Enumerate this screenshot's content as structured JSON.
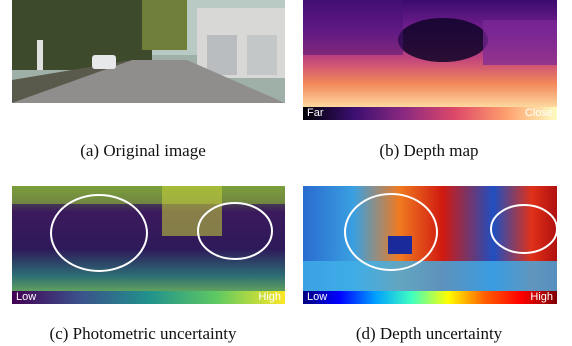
{
  "panels": [
    {
      "caption": "(a) Original image"
    },
    {
      "caption": "(b) Depth map",
      "colorbar": {
        "low": "Far",
        "high": "Close"
      }
    },
    {
      "caption": "(c) Photometric uncertainty",
      "colorbar": {
        "low": "Low",
        "high": "High"
      }
    },
    {
      "caption": "(d) Depth uncertainty",
      "colorbar": {
        "low": "Low",
        "high": "High"
      }
    }
  ]
}
